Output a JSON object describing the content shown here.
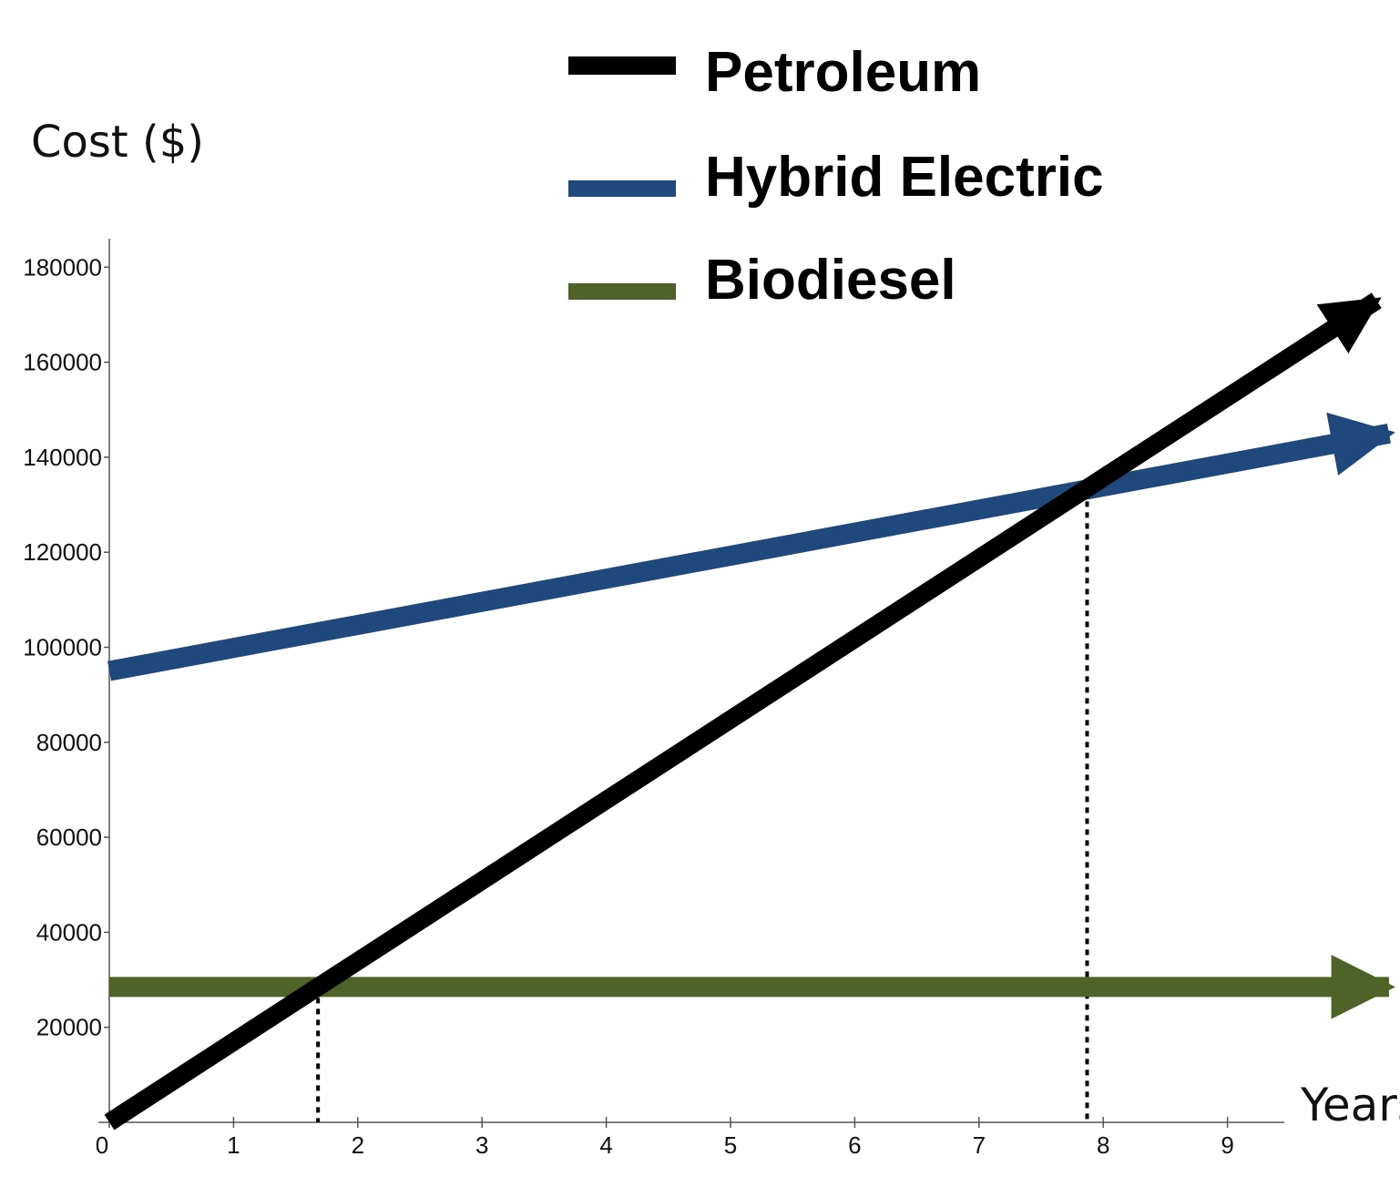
{
  "chart_data": {
    "type": "line",
    "ylabel": "Cost ($)",
    "xlabel": "Years",
    "xlim": [
      0,
      9.5
    ],
    "ylim": [
      0,
      186000
    ],
    "x_ticks": [
      "0",
      "1",
      "2",
      "3",
      "4",
      "5",
      "6",
      "7",
      "8",
      "9"
    ],
    "y_ticks": [
      "20000",
      "40000",
      "60000",
      "80000",
      "100000",
      "120000",
      "140000",
      "160000",
      "180000"
    ],
    "series": [
      {
        "name": "Petroleum",
        "color": "#000000",
        "x": [
          0,
          10.2
        ],
        "y": [
          0,
          173000
        ]
      },
      {
        "name": "Hybrid Electric",
        "color": "#1f497d",
        "x": [
          0,
          10.3
        ],
        "y": [
          95000,
          145000
        ]
      },
      {
        "name": "Biodiesel",
        "color": "#4f6228",
        "x": [
          0,
          10.3
        ],
        "y": [
          28500,
          28500
        ]
      }
    ],
    "reference_lines": [
      {
        "x": 1.68,
        "y_top": 28500
      },
      {
        "x": 7.87,
        "y_top": 133000
      }
    ],
    "legend_position": "top-right"
  }
}
